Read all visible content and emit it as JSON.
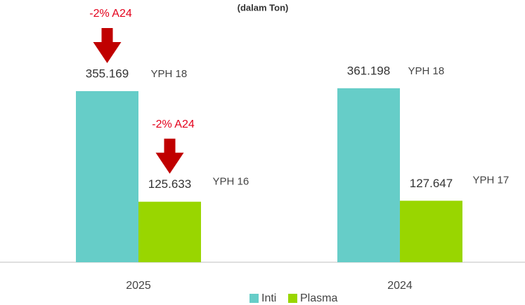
{
  "chart_data": {
    "type": "bar",
    "title": "(dalam Ton)",
    "categories": [
      "2025",
      "2024"
    ],
    "series": [
      {
        "name": "Inti",
        "color": "#66cdc8",
        "values": [
          355.169,
          361.198
        ],
        "notes": [
          "YPH 18",
          "YPH 18"
        ],
        "change_labels": [
          "-2% A24",
          null
        ]
      },
      {
        "name": "Plasma",
        "color": "#99d600",
        "values": [
          125.633,
          127.647
        ],
        "notes": [
          "YPH 16",
          "YPH 17"
        ],
        "change_labels": [
          "-2% A24",
          null
        ]
      }
    ]
  }
}
